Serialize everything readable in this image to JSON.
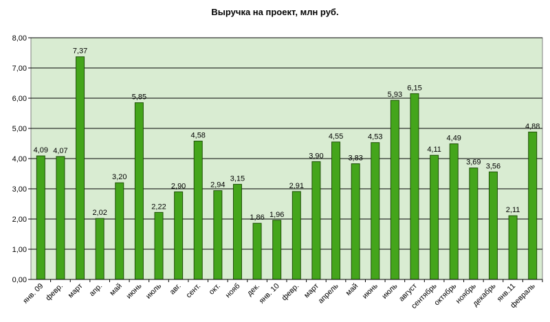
{
  "chart_data": {
    "type": "bar",
    "title": "Выручка на проект, млн руб.",
    "xlabel": "",
    "ylabel": "",
    "ylim": [
      0,
      8
    ],
    "yticks": [
      "0,00",
      "1,00",
      "2,00",
      "3,00",
      "4,00",
      "5,00",
      "6,00",
      "7,00",
      "8,00"
    ],
    "grid": true,
    "legend": "none",
    "colors": {
      "plot_bg": "#d9ecd2",
      "bar_fill": "#44a51b",
      "bar_stroke": "#1f4f08",
      "gridline": "#000000"
    },
    "categories": [
      "янв. 09",
      "февр.",
      "март",
      "апр.",
      "май",
      "июнь",
      "июль",
      "авг.",
      "сент.",
      "окт.",
      "нояб",
      "дек.",
      "янв. 10",
      "февр.",
      "март",
      "апрель",
      "май",
      "июнь",
      "июль",
      "август",
      "сентябрь",
      "октябрь",
      "ноябрь",
      "декабрь",
      "янв.11",
      "февраль"
    ],
    "values": [
      4.09,
      4.07,
      7.37,
      2.02,
      3.2,
      5.85,
      2.22,
      2.9,
      4.58,
      2.94,
      3.15,
      1.86,
      1.96,
      2.91,
      3.9,
      4.55,
      3.83,
      4.53,
      5.93,
      6.15,
      4.11,
      4.49,
      3.69,
      3.56,
      2.11,
      4.88
    ],
    "value_labels": [
      "4,09",
      "4,07",
      "7,37",
      "2,02",
      "3,20",
      "5,85",
      "2,22",
      "2,90",
      "4,58",
      "2,94",
      "3,15",
      "1,86",
      "1,96",
      "2,91",
      "3,90",
      "4,55",
      "3,83",
      "4,53",
      "5,93",
      "6,15",
      "4,11",
      "4,49",
      "3,69",
      "3,56",
      "2,11",
      "4,88"
    ]
  }
}
